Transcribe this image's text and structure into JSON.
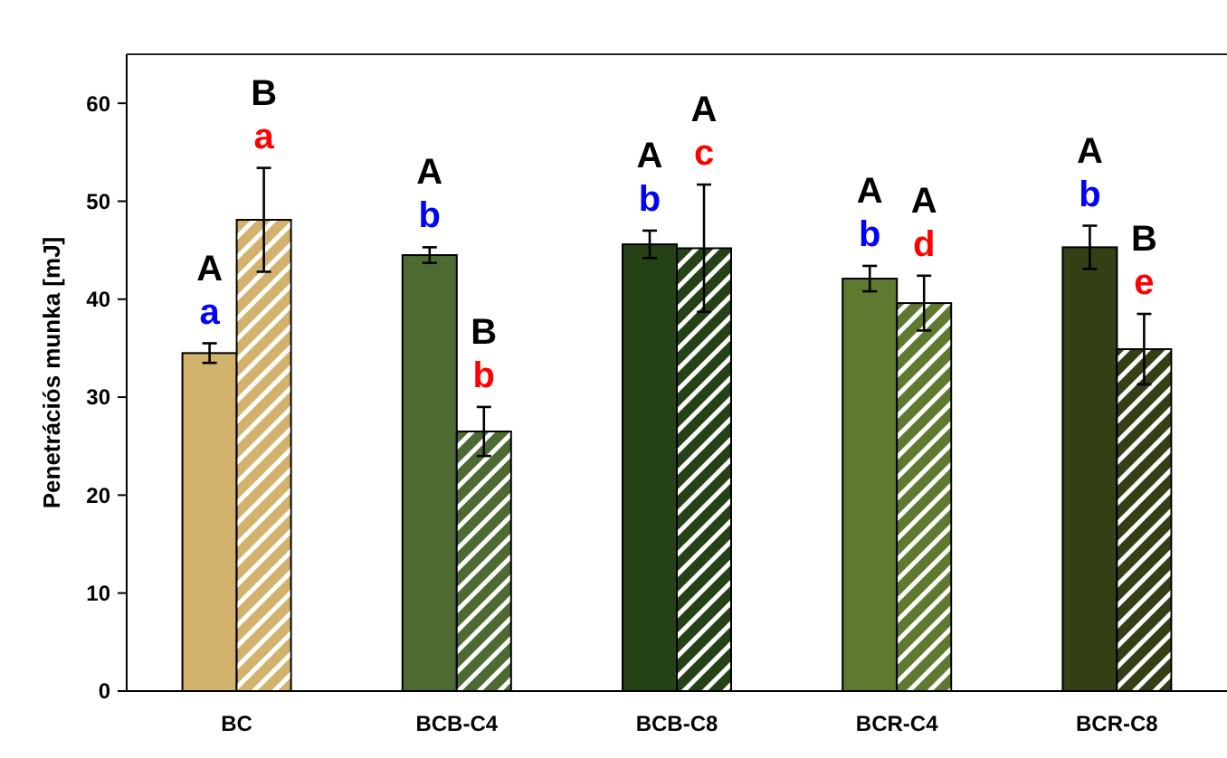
{
  "chart_data": {
    "type": "bar",
    "ylabel": "Penetrációs munka  [mJ]",
    "categories": [
      "BC",
      "BCB-C4",
      "BCB-C8",
      "BCR-C4",
      "BCR-C8"
    ],
    "series": [
      {
        "colors": [
          "#d3b26d",
          "#4e6a33",
          "#254217",
          "#5f7a30",
          "#333f14"
        ],
        "values": [
          34.5,
          44.5,
          45.6,
          42.1,
          45.3
        ],
        "errors": [
          1,
          0.8,
          1.4,
          1.3,
          2.2
        ]
      },
      {
        "colors": [
          "#d3b26d",
          "#4e6a33",
          "#254217",
          "#5f7a30",
          "#333f14"
        ],
        "values": [
          48.1,
          26.5,
          45.2,
          39.6,
          34.9
        ],
        "errors": [
          5.3,
          2.5,
          6.5,
          2.8,
          3.6
        ]
      }
    ],
    "ylim": [
      0,
      65
    ],
    "yticks": [
      0,
      10,
      20,
      30,
      40,
      50,
      60
    ],
    "grid": false,
    "annotations": [
      "A",
      "a",
      "B",
      "a",
      "A",
      "b",
      "B",
      "b",
      "A",
      "b",
      "A",
      "c",
      "A",
      "b",
      "A",
      "d",
      "A",
      "b",
      "B",
      "e"
    ]
  }
}
